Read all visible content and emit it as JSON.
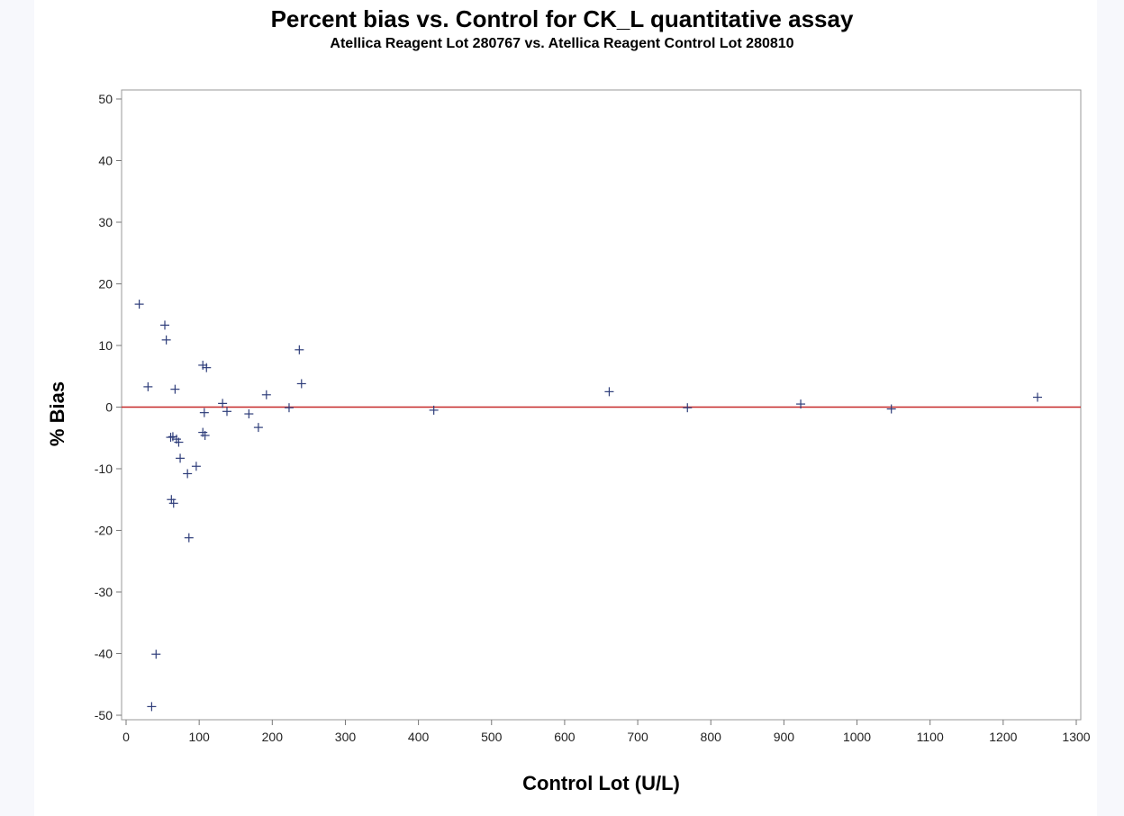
{
  "page": {
    "title": "Percent bias vs. Control for CK_L quantitative assay",
    "subtitle": "Atellica Reagent Lot 280767 vs. Atellica Reagent Control Lot 280810"
  },
  "chart_data": {
    "type": "scatter",
    "title": "Percent bias vs. Control for CK_L quantitative assay",
    "subtitle": "Atellica Reagent Lot 280767 vs. Atellica Reagent Control Lot 280810",
    "xlabel": "Control Lot (U/L)",
    "ylabel": "% Bias",
    "xlim": [
      0,
      1300
    ],
    "ylim": [
      -50,
      50
    ],
    "x_ticks": [
      0,
      100,
      200,
      300,
      400,
      500,
      600,
      700,
      800,
      900,
      1000,
      1100,
      1200,
      1300
    ],
    "y_ticks": [
      -50,
      -40,
      -30,
      -20,
      -10,
      0,
      10,
      20,
      30,
      40,
      50
    ],
    "grid": false,
    "marker": "plus",
    "marker_color": "#2e3d7a",
    "reference_line": {
      "y": 0,
      "color": "#c62828"
    },
    "points": [
      {
        "x": 18,
        "y": 16.7
      },
      {
        "x": 30,
        "y": 3.3
      },
      {
        "x": 35,
        "y": -48.6
      },
      {
        "x": 41,
        "y": -40.1
      },
      {
        "x": 53,
        "y": 13.3
      },
      {
        "x": 55,
        "y": 10.9
      },
      {
        "x": 61,
        "y": -4.9
      },
      {
        "x": 62,
        "y": -15.0
      },
      {
        "x": 64,
        "y": -4.8
      },
      {
        "x": 65,
        "y": -15.6
      },
      {
        "x": 67,
        "y": 2.9
      },
      {
        "x": 69,
        "y": -5.2
      },
      {
        "x": 72,
        "y": -5.7
      },
      {
        "x": 74,
        "y": -8.3
      },
      {
        "x": 84,
        "y": -10.8
      },
      {
        "x": 86,
        "y": -21.2
      },
      {
        "x": 96,
        "y": -9.6
      },
      {
        "x": 105,
        "y": 6.8
      },
      {
        "x": 105,
        "y": -4.1
      },
      {
        "x": 107,
        "y": -0.9
      },
      {
        "x": 108,
        "y": -4.6
      },
      {
        "x": 110,
        "y": 6.4
      },
      {
        "x": 132,
        "y": 0.6
      },
      {
        "x": 138,
        "y": -0.7
      },
      {
        "x": 168,
        "y": -1.1
      },
      {
        "x": 181,
        "y": -3.3
      },
      {
        "x": 192,
        "y": 2.0
      },
      {
        "x": 223,
        "y": -0.1
      },
      {
        "x": 237,
        "y": 9.3
      },
      {
        "x": 240,
        "y": 3.8
      },
      {
        "x": 421,
        "y": -0.5
      },
      {
        "x": 661,
        "y": 2.5
      },
      {
        "x": 768,
        "y": -0.1
      },
      {
        "x": 923,
        "y": 0.5
      },
      {
        "x": 1047,
        "y": -0.3
      },
      {
        "x": 1247,
        "y": 1.6
      }
    ]
  }
}
